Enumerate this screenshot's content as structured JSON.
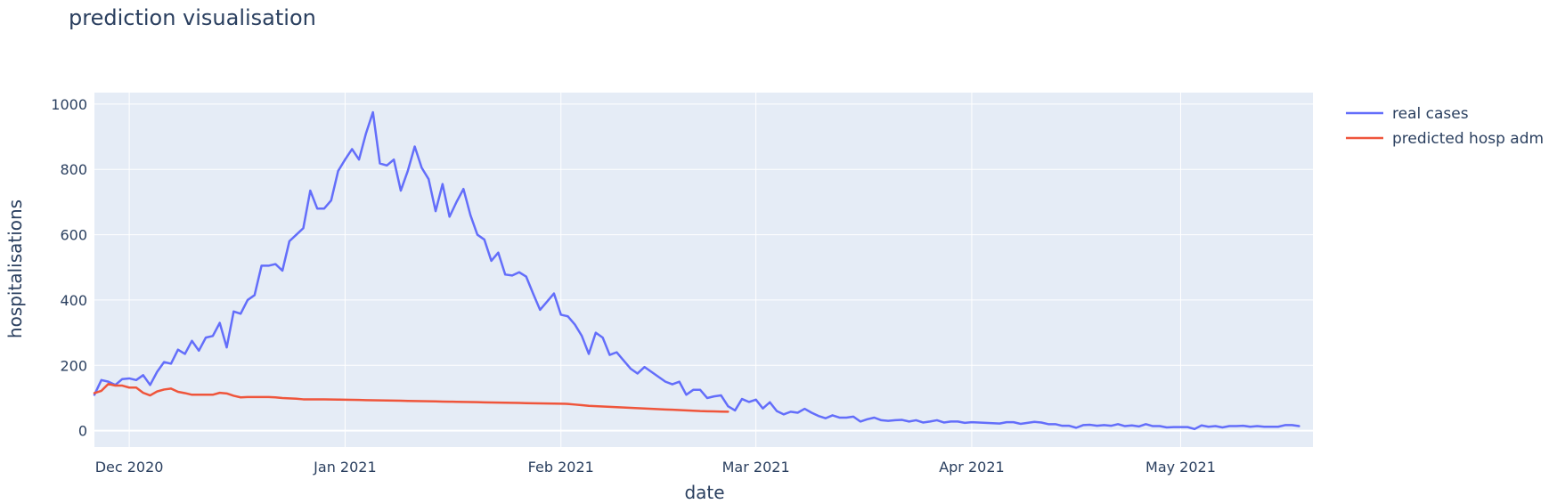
{
  "chart_data": {
    "type": "line",
    "title": "prediction visualisation",
    "xlabel": "date",
    "ylabel": "hospitalisations",
    "xlim": [
      "2020-11-26",
      "2021-05-20"
    ],
    "ylim": [
      -50,
      1035
    ],
    "x_ticks": [
      {
        "date": "2020-12-01",
        "label": "Dec 2020"
      },
      {
        "date": "2021-01-01",
        "label": "Jan 2021"
      },
      {
        "date": "2021-02-01",
        "label": "Feb 2021"
      },
      {
        "date": "2021-03-01",
        "label": "Mar 2021"
      },
      {
        "date": "2021-04-01",
        "label": "Apr 2021"
      },
      {
        "date": "2021-05-01",
        "label": "May 2021"
      }
    ],
    "y_ticks": [
      0,
      200,
      400,
      600,
      800,
      1000
    ],
    "grid": true,
    "legend_position": "top-right",
    "plot_background": "#e5ecf6",
    "series": [
      {
        "name": "real cases",
        "color": "#636efa",
        "x_start": "2020-11-26",
        "values": [
          110,
          155,
          150,
          140,
          158,
          160,
          155,
          170,
          140,
          180,
          210,
          205,
          248,
          235,
          275,
          245,
          285,
          290,
          330,
          255,
          365,
          358,
          400,
          415,
          505,
          505,
          510,
          490,
          580,
          600,
          620,
          735,
          680,
          680,
          705,
          795,
          830,
          862,
          830,
          910,
          975,
          818,
          812,
          830,
          735,
          795,
          870,
          805,
          770,
          672,
          755,
          655,
          700,
          740,
          660,
          600,
          585,
          520,
          545,
          478,
          475,
          485,
          472,
          420,
          370,
          395,
          420,
          355,
          350,
          325,
          290,
          235,
          300,
          285,
          232,
          240,
          215,
          190,
          175,
          195,
          180,
          165,
          150,
          142,
          150,
          110,
          125,
          125,
          100,
          105,
          108,
          75,
          62,
          97,
          88,
          95,
          68,
          87,
          60,
          50,
          58,
          55,
          67,
          55,
          45,
          38,
          47,
          40,
          40,
          43,
          28,
          35,
          40,
          32,
          30,
          32,
          33,
          28,
          32,
          25,
          28,
          32,
          25,
          28,
          28,
          24,
          26,
          25,
          24,
          23,
          22,
          26,
          26,
          21,
          24,
          27,
          25,
          20,
          20,
          15,
          15,
          9,
          17,
          18,
          15,
          17,
          15,
          20,
          14,
          16,
          13,
          20,
          14,
          14,
          10,
          11,
          11,
          11,
          5,
          16,
          12,
          14,
          10,
          14,
          14,
          15,
          12,
          14,
          12,
          12,
          12,
          17,
          17,
          14
        ]
      },
      {
        "name": "predicted hosp adm",
        "color": "#ef553b",
        "x_start": "2020-11-26",
        "values": [
          115,
          122,
          143,
          138,
          138,
          132,
          132,
          116,
          108,
          120,
          126,
          129,
          119,
          115,
          110,
          110,
          110,
          110,
          116,
          114,
          107,
          102,
          103,
          103,
          103,
          103,
          102,
          100,
          99,
          98,
          96,
          96,
          96,
          96,
          95.6,
          95.2,
          94.8,
          94.4,
          94,
          93.6,
          93.2,
          92.8,
          92.4,
          92,
          91.6,
          91.2,
          90.8,
          90.4,
          90,
          89.6,
          89.2,
          88.8,
          88.4,
          88,
          87.6,
          87.2,
          86.8,
          86.4,
          86,
          85.6,
          85.2,
          84.8,
          84.4,
          84,
          83.6,
          83.2,
          82.8,
          82.4,
          82,
          80,
          78,
          76,
          75,
          74,
          73,
          72,
          71,
          70,
          69,
          68,
          67,
          66,
          65,
          64,
          63,
          62,
          61,
          60,
          59.5,
          59,
          58.5,
          58
        ]
      }
    ]
  }
}
